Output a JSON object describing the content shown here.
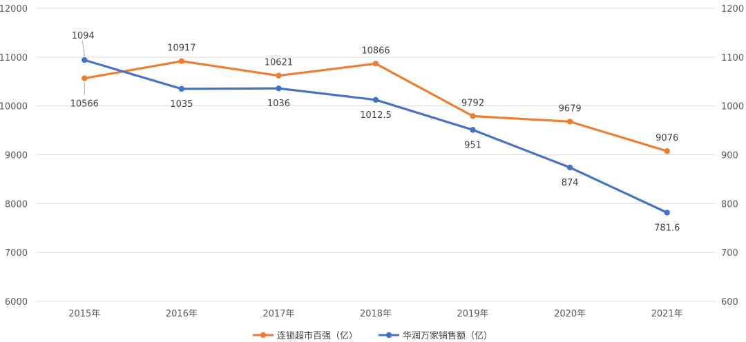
{
  "chart_data": {
    "type": "line",
    "categories": [
      "2015年",
      "2016年",
      "2017年",
      "2018年",
      "2019年",
      "2020年",
      "2021年"
    ],
    "series": [
      {
        "name": "连锁超市百强（亿）",
        "axis": "left",
        "color": "#ED7D31",
        "values": [
          10566,
          10917,
          10621,
          10866,
          9792,
          9679,
          9076
        ],
        "labels": [
          "10566",
          "10917",
          "10621",
          "10866",
          "9792",
          "9679",
          "9076"
        ]
      },
      {
        "name": "华润万家销售额（亿）",
        "axis": "right",
        "color": "#4472C4",
        "values": [
          1094,
          1035,
          1036,
          1012.5,
          951,
          874,
          781.6
        ],
        "labels": [
          "1094",
          "1035",
          "1036",
          "1012.5",
          "951",
          "874",
          "781.6"
        ]
      }
    ],
    "y_left": {
      "min": 6000,
      "max": 12000,
      "ticks": [
        "6000",
        "7000",
        "8000",
        "9000",
        "10000",
        "11000",
        "12000"
      ]
    },
    "y_right": {
      "min": 600,
      "max": 1200,
      "ticks": [
        "600",
        "700",
        "800",
        "900",
        "1000",
        "1100",
        "1200"
      ]
    },
    "grid": true,
    "legend": "bottom"
  }
}
